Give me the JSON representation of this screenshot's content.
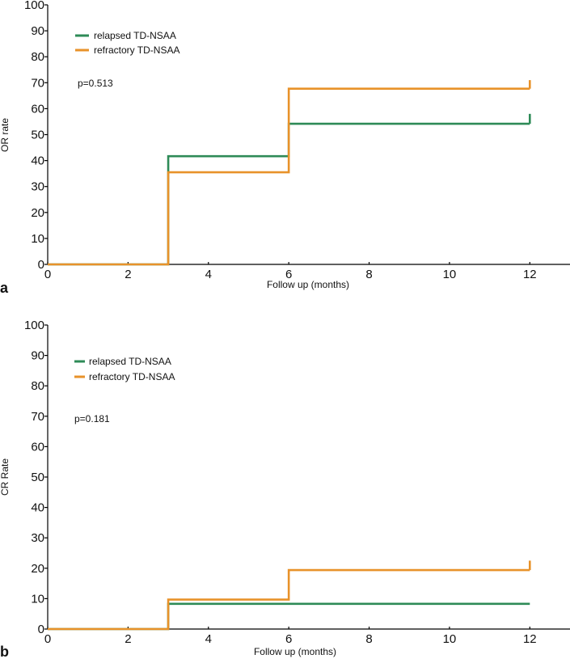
{
  "chart_data": [
    {
      "type": "line",
      "step": true,
      "panel_label": "a",
      "xlabel": "Follow up (months)",
      "ylabel": "OR rate",
      "xlim": [
        0,
        13
      ],
      "ylim": [
        0,
        100
      ],
      "xticks": [
        0,
        2,
        4,
        6,
        8,
        10,
        12
      ],
      "yticks": [
        0,
        10,
        20,
        30,
        40,
        50,
        60,
        70,
        80,
        90,
        100
      ],
      "annotation": "p=0.513",
      "legend_position": "top-left",
      "series": [
        {
          "name": "relapsed TD-NSAA",
          "color": "#2e8b57",
          "x": [
            0,
            3,
            6,
            12
          ],
          "values": [
            0,
            41.7,
            54.2,
            54.2
          ],
          "end_tick": 58
        },
        {
          "name": "refractory TD-NSAA",
          "color": "#e8922a",
          "x": [
            0,
            3,
            6,
            12
          ],
          "values": [
            0,
            35.5,
            67.7,
            67.7
          ],
          "end_tick": 71
        }
      ]
    },
    {
      "type": "line",
      "step": true,
      "panel_label": "b",
      "xlabel": "Follow up (months)",
      "ylabel": "CR Rate",
      "xlim": [
        0,
        13
      ],
      "ylim": [
        0,
        100
      ],
      "xticks": [
        0,
        2,
        4,
        6,
        8,
        10,
        12
      ],
      "yticks": [
        0,
        10,
        20,
        30,
        40,
        50,
        60,
        70,
        80,
        90,
        100
      ],
      "annotation": "p=0.181",
      "legend_position": "top-left",
      "series": [
        {
          "name": "relapsed TD-NSAA",
          "color": "#2e8b57",
          "x": [
            0,
            3,
            6,
            12
          ],
          "values": [
            0,
            8.3,
            8.3,
            8.3
          ],
          "end_tick": 8.3
        },
        {
          "name": "refractory TD-NSAA",
          "color": "#e8922a",
          "x": [
            0,
            3,
            6,
            12
          ],
          "values": [
            0,
            9.7,
            19.4,
            19.4
          ],
          "end_tick": 22.5
        }
      ]
    }
  ]
}
